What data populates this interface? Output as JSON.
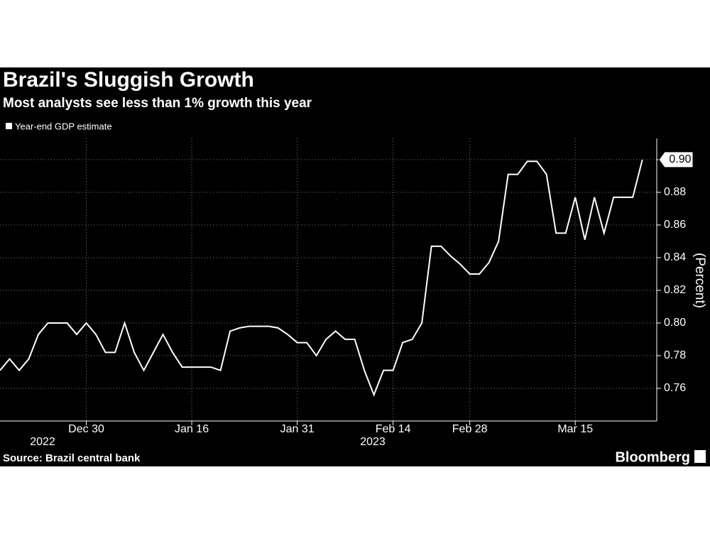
{
  "chart_data": {
    "type": "line",
    "title": "Brazil's Sluggish Growth",
    "subtitle": "Most analysts see less than 1% growth this year",
    "source": "Source: Brazil central bank",
    "brand": "Bloomberg",
    "y_label": "(Percent)",
    "year_labels": [
      "2022",
      "2023"
    ],
    "categories": [
      null,
      null,
      null,
      null,
      null,
      null,
      null,
      null,
      null,
      "Dec 30",
      null,
      null,
      null,
      null,
      null,
      null,
      null,
      null,
      null,
      null,
      "Jan 16",
      null,
      null,
      null,
      null,
      null,
      null,
      null,
      null,
      null,
      null,
      "Jan 31",
      null,
      null,
      null,
      null,
      null,
      null,
      null,
      null,
      null,
      "Feb 14",
      null,
      null,
      null,
      null,
      null,
      null,
      null,
      "Feb 28",
      null,
      null,
      null,
      null,
      null,
      null,
      null,
      null,
      null,
      null,
      "Mar 15",
      null,
      null,
      null,
      null,
      null,
      null,
      null
    ],
    "series": [
      {
        "name": "Year-end GDP estimate",
        "color": "#ffffff",
        "values": [
          0.771,
          0.778,
          0.771,
          0.778,
          0.793,
          0.8,
          0.8,
          0.8,
          0.793,
          0.8,
          0.793,
          0.782,
          0.782,
          0.8,
          0.782,
          0.771,
          0.782,
          0.793,
          0.782,
          0.773,
          0.773,
          0.773,
          0.773,
          0.771,
          0.795,
          0.797,
          0.798,
          0.798,
          0.798,
          0.797,
          0.793,
          0.788,
          0.788,
          0.78,
          0.79,
          0.795,
          0.79,
          0.79,
          0.771,
          0.756,
          0.771,
          0.771,
          0.788,
          0.79,
          0.8,
          0.847,
          0.847,
          0.841,
          0.836,
          0.83,
          0.83,
          0.837,
          0.85,
          0.891,
          0.891,
          0.899,
          0.899,
          0.891,
          0.855,
          0.855,
          0.877,
          0.851,
          0.877,
          0.855,
          0.877,
          0.877,
          0.877,
          0.9
        ],
        "last_label": "0.90"
      }
    ],
    "ylim": [
      0.74,
      0.913
    ],
    "yticks": [
      0.76,
      0.78,
      {
        "value": 0.8,
        "label": "0.80"
      },
      0.82,
      0.84,
      0.86,
      0.88,
      {
        "value": 0.9,
        "label": "0.90"
      }
    ],
    "grid": true
  }
}
